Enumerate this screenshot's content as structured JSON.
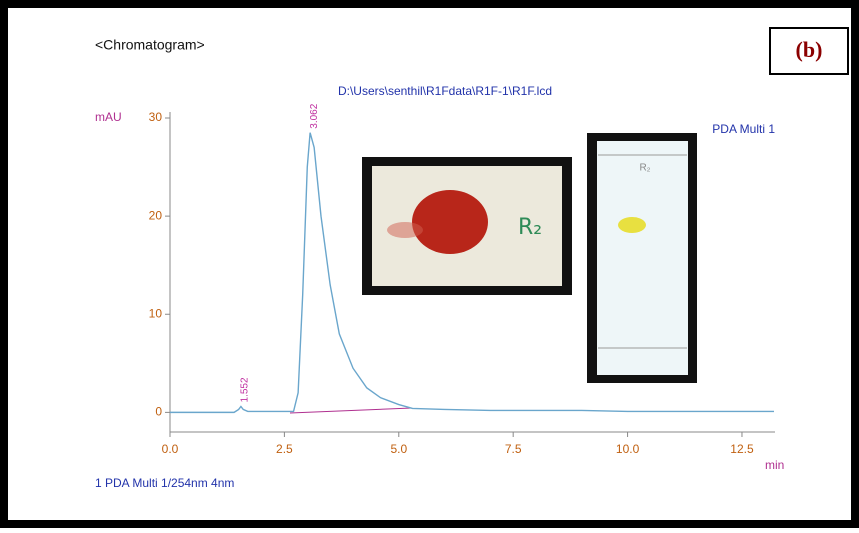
{
  "chart_data": {
    "type": "line",
    "title": "<Chromatogram>",
    "panel_label": "(b)",
    "subtitle": "D:\\Users\\senthil\\R1Fdata\\R1F-1\\R1F.lcd",
    "y_label": "mAU",
    "x_label": "min",
    "legend_label": "PDA Multi 1",
    "footnote": "1  PDA Multi 1/254nm 4nm",
    "inset_labels": [
      "R₂",
      "R₂"
    ],
    "peaks": [
      3.062,
      1.552
    ],
    "xlim": [
      0,
      13.2
    ],
    "ylim": [
      -2,
      30
    ],
    "xticks": [
      {
        "value": 0,
        "label": "0.0"
      },
      2.5,
      {
        "value": 5,
        "label": "5.0"
      },
      7.5,
      {
        "value": 10,
        "label": "10.0"
      },
      12.5
    ],
    "yticks": [
      0,
      10,
      20,
      30
    ],
    "series": [
      {
        "name": "PDA Multi 1",
        "color": "#6aa6cc",
        "x": [
          0,
          1.4,
          1.5,
          1.55,
          1.6,
          1.7,
          2.7,
          2.8,
          2.9,
          3.0,
          3.062,
          3.15,
          3.3,
          3.5,
          3.7,
          4.0,
          4.3,
          4.6,
          5.0,
          5.3,
          6,
          7,
          8,
          9,
          10,
          11,
          12,
          13.2
        ],
        "values": [
          0,
          0,
          0.3,
          0.6,
          0.3,
          0.1,
          0.1,
          2,
          12,
          25,
          28.5,
          27,
          20,
          13,
          8,
          4.5,
          2.5,
          1.5,
          0.8,
          0.4,
          0.3,
          0.2,
          0.2,
          0.2,
          0.1,
          0.1,
          0.1,
          0.1
        ]
      }
    ]
  }
}
